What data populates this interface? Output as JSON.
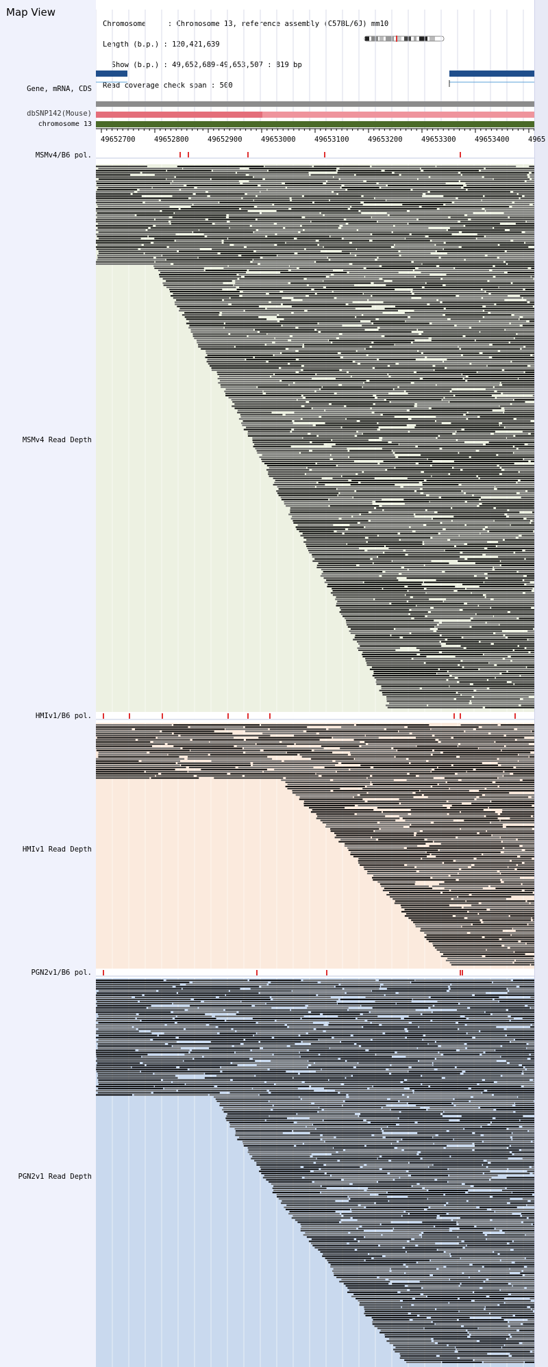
{
  "header": {
    "title": "Map View",
    "info_lines": [
      "Chromosome     : Chromosome 13, reference assembly (C57BL/6J) mm10",
      "Length (b.p.) : 120,421,639",
      "  Show (b.p.) : 49,652,689-49,653,507 : 819 bp",
      "Read coverage check span : 500"
    ]
  },
  "tracks": {
    "gene_label": "Gene, mRNA, CDS",
    "snp_label": "dbSNP142(Mouse)",
    "chrom_label": "chromosome 13",
    "ruler_ticks": [
      "49652700",
      "49652800",
      "49652900",
      "49653000",
      "49653100",
      "49653200",
      "49653300",
      "49653400",
      "4965"
    ]
  },
  "panels": [
    {
      "id": "msmv4",
      "pol_label": "MSMv4/B6 pol.",
      "depth_label": "MSMv4 Read Depth",
      "bg": "#edf1e2",
      "pol_marks": [
        0.19,
        0.21,
        0.345,
        0.52,
        0.83
      ]
    },
    {
      "id": "hmiv1",
      "pol_label": "HMIv1/B6 pol.",
      "depth_label": "HMIv1 Read Depth",
      "bg": "#fbeadd",
      "pol_marks": [
        0.015,
        0.075,
        0.15,
        0.3,
        0.345,
        0.395,
        0.815,
        0.83,
        0.955
      ]
    },
    {
      "id": "pgn2v1",
      "pol_label": "PGN2v1/B6 pol.",
      "depth_label": "PGN2v1 Read Depth",
      "bg": "#c9d9ee",
      "pol_marks": [
        0.015,
        0.365,
        0.525,
        0.83,
        0.835
      ]
    }
  ],
  "colors": {
    "gene": "#1f4e8c",
    "gene_line": "#5aa0d8",
    "snp_gray": "#8c8c8c",
    "snp_dark": "#e46e7a",
    "snp_light": "#ef949c",
    "chrom": "#4a6a28",
    "pol_mark": "#e03030"
  }
}
